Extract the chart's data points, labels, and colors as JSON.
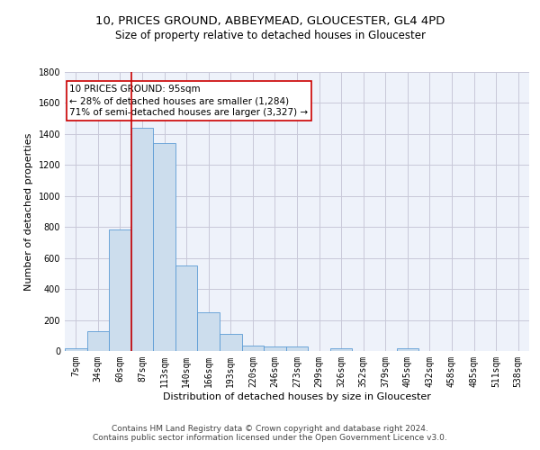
{
  "title1": "10, PRICES GROUND, ABBEYMEAD, GLOUCESTER, GL4 4PD",
  "title2": "Size of property relative to detached houses in Gloucester",
  "xlabel": "Distribution of detached houses by size in Gloucester",
  "ylabel": "Number of detached properties",
  "footer1": "Contains HM Land Registry data © Crown copyright and database right 2024.",
  "footer2": "Contains public sector information licensed under the Open Government Licence v3.0.",
  "annotation_title": "10 PRICES GROUND: 95sqm",
  "annotation_line1": "← 28% of detached houses are smaller (1,284)",
  "annotation_line2": "71% of semi-detached houses are larger (3,327) →",
  "bin_labels": [
    "7sqm",
    "34sqm",
    "60sqm",
    "87sqm",
    "113sqm",
    "140sqm",
    "166sqm",
    "193sqm",
    "220sqm",
    "246sqm",
    "273sqm",
    "299sqm",
    "326sqm",
    "352sqm",
    "379sqm",
    "405sqm",
    "432sqm",
    "458sqm",
    "485sqm",
    "511sqm",
    "538sqm"
  ],
  "bar_values": [
    15,
    125,
    785,
    1440,
    1340,
    550,
    248,
    110,
    35,
    28,
    28,
    0,
    18,
    0,
    0,
    20,
    0,
    0,
    0,
    0,
    0
  ],
  "bar_color": "#ccdded",
  "bar_edge_color": "#5b9bd5",
  "red_line_x": 2.5,
  "ylim": [
    0,
    1800
  ],
  "yticks": [
    0,
    200,
    400,
    600,
    800,
    1000,
    1200,
    1400,
    1600,
    1800
  ],
  "grid_color": "#c8c8d8",
  "background_color": "#eef2fa",
  "annotation_box_color": "#ffffff",
  "annotation_box_edge": "#cc0000",
  "red_line_color": "#cc0000",
  "title_fontsize": 9.5,
  "subtitle_fontsize": 8.5,
  "annotation_fontsize": 7.5,
  "axis_label_fontsize": 8,
  "tick_fontsize": 7,
  "footer_fontsize": 6.5
}
